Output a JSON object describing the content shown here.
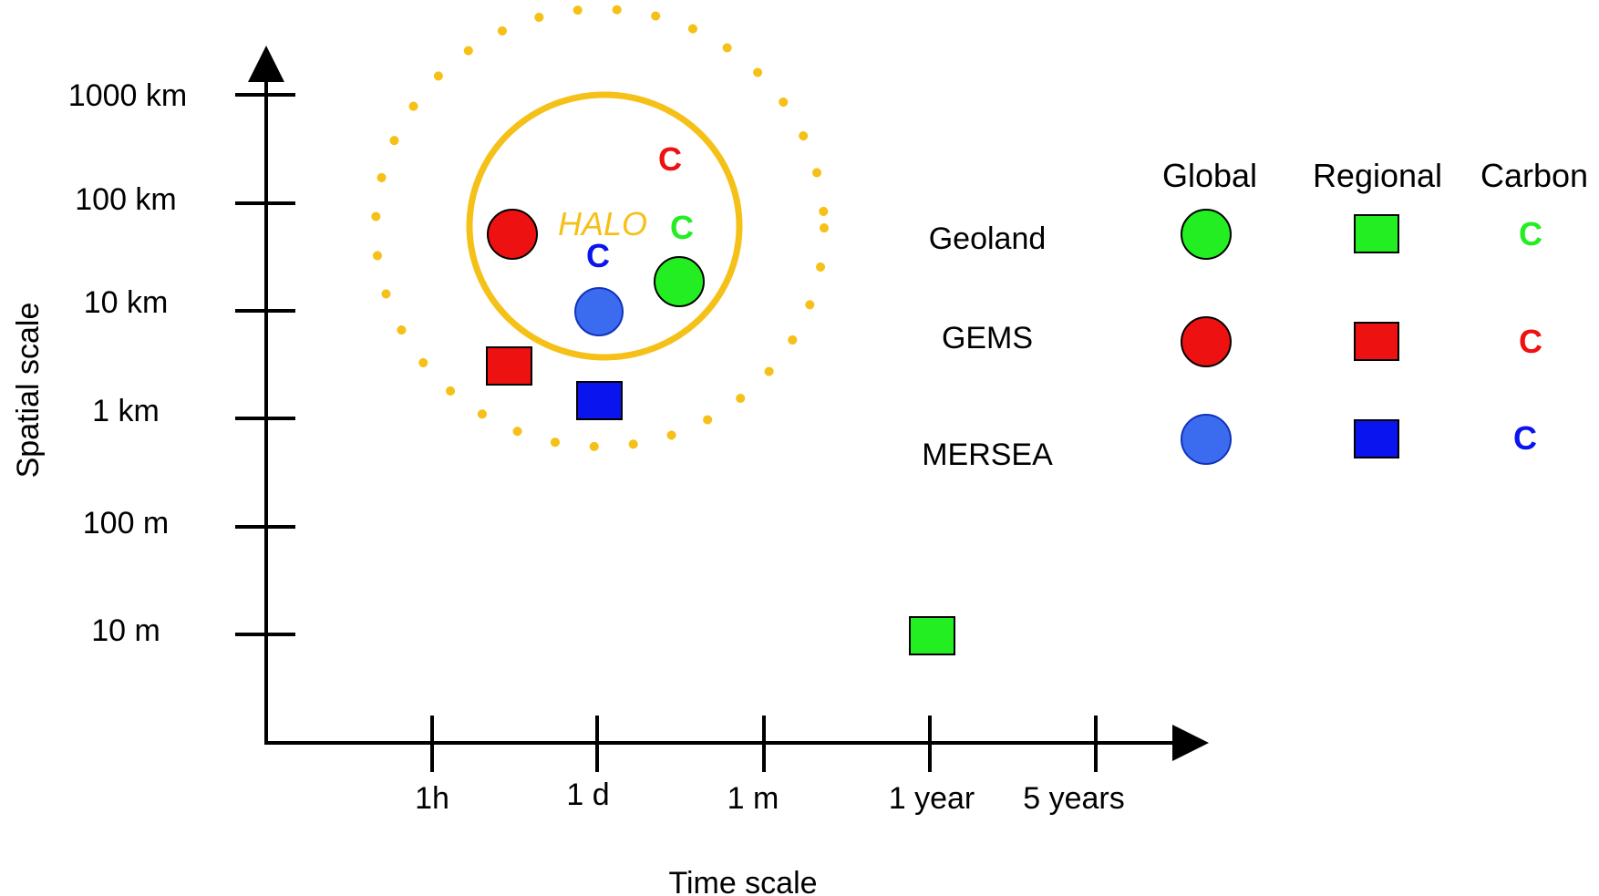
{
  "y_axis": {
    "label": "Spatial scale",
    "ticks": [
      "1000 km",
      "100 km",
      "10 km",
      "1 km",
      "100 m",
      "10 m"
    ]
  },
  "x_axis": {
    "label": "Time scale",
    "ticks": [
      "1h",
      "1 d",
      "1 m",
      "1 year",
      "5 years"
    ]
  },
  "halo": {
    "label": "HALO",
    "color": "#F5C118"
  },
  "legend": {
    "headers": [
      "Global",
      "Regional",
      "Carbon"
    ],
    "rows": [
      {
        "name": "Geoland",
        "color": "#22EE22"
      },
      {
        "name": "GEMS",
        "color": "#EE1111"
      },
      {
        "name": "MERSEA",
        "color": "#2B6BEF",
        "regional_color": "#0A14EE",
        "carbon_color": "#0A14EE"
      }
    ]
  },
  "markers": {
    "carbon_letter": "C",
    "items": [
      {
        "project": "GEMS",
        "kind": "global"
      },
      {
        "project": "MERSEA",
        "kind": "global"
      },
      {
        "project": "Geoland",
        "kind": "global"
      },
      {
        "project": "GEMS",
        "kind": "regional"
      },
      {
        "project": "MERSEA",
        "kind": "regional"
      },
      {
        "project": "Geoland",
        "kind": "regional"
      },
      {
        "project": "GEMS",
        "kind": "carbon"
      },
      {
        "project": "Geoland",
        "kind": "carbon"
      },
      {
        "project": "MERSEA",
        "kind": "carbon"
      }
    ]
  }
}
